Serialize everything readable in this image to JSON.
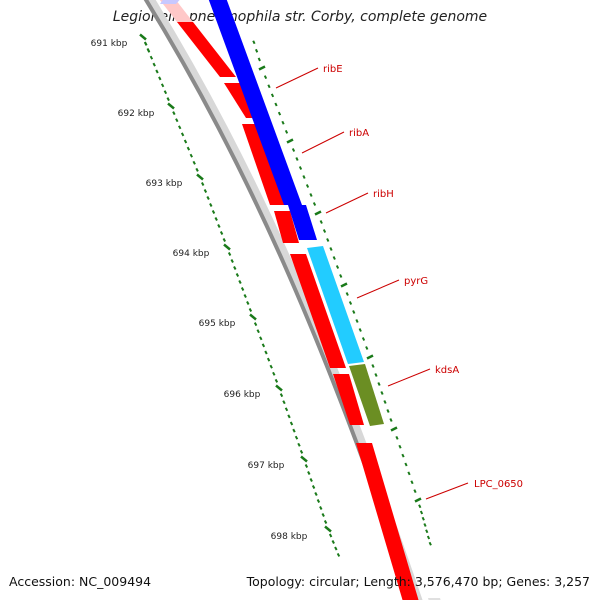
{
  "title": "Legionella pneumophila str. Corby, complete genome",
  "footer": {
    "accession": "Accession: NC_009494",
    "summary": "Topology: circular; Length: 3,576,470 bp; Genes: 3,257"
  },
  "ruler": {
    "ticks": [
      {
        "kbp": 691,
        "label": "691 kbp"
      },
      {
        "kbp": 692,
        "label": "692 kbp"
      },
      {
        "kbp": 693,
        "label": "693 kbp"
      },
      {
        "kbp": 694,
        "label": "694 kbp"
      },
      {
        "kbp": 695,
        "label": "695 kbp"
      },
      {
        "kbp": 696,
        "label": "696 kbp"
      },
      {
        "kbp": 697,
        "label": "697 kbp"
      },
      {
        "kbp": 698,
        "label": "698 kbp"
      }
    ]
  },
  "colors": {
    "cds": "#ff0000",
    "gene_blue": "#0000ff",
    "gene_cyan": "#22ccff",
    "gene_olive": "#6b8e23",
    "backbone": "#888888",
    "ticks": "#1a7a1a",
    "label": "#cc0000"
  },
  "genes": [
    {
      "name": "ribE",
      "label": "ribE"
    },
    {
      "name": "ribA",
      "label": "ribA"
    },
    {
      "name": "ribH",
      "label": "ribH"
    },
    {
      "name": "pyrG",
      "label": "pyrG"
    },
    {
      "name": "kdsA",
      "label": "kdsA"
    },
    {
      "name": "LPC_0650",
      "label": "LPC_0650"
    }
  ]
}
